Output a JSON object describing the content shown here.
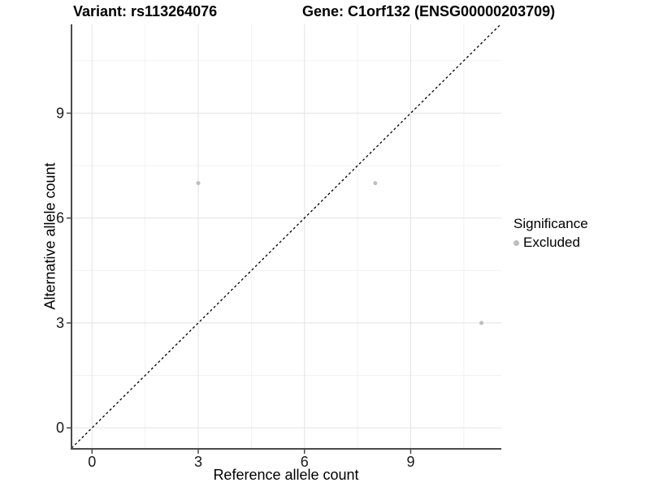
{
  "chart_data": {
    "type": "scatter",
    "title_left": "Variant: rs113264076",
    "title_right": "Gene: C1orf132 (ENSG00000203709)",
    "xlabel": "Reference allele count",
    "ylabel": "Alternative allele count",
    "x_ticks": [
      0,
      3,
      6,
      9
    ],
    "y_ticks": [
      0,
      3,
      6,
      9
    ],
    "xlim": [
      -0.58,
      11.56
    ],
    "ylim": [
      -0.6,
      11.54
    ],
    "grid": {
      "show": true,
      "major_color": "#e3e3e3",
      "minor_color": "#f1f1f1"
    },
    "axis_color": "#4a4a4a",
    "tick_label_color": "#1a1a1a",
    "background": "#ffffff",
    "identity_line": {
      "equation": "y=x",
      "dashed": true,
      "color": "#000000"
    },
    "series": [
      {
        "name": "Excluded",
        "color": "#bebebe",
        "marker_size": 5,
        "points": [
          [
            3,
            7
          ],
          [
            8,
            7
          ],
          [
            11,
            3
          ]
        ]
      }
    ],
    "legend": {
      "position": "right",
      "title": "Significance",
      "items": [
        {
          "label": "Excluded",
          "color": "#bebebe"
        }
      ]
    }
  }
}
